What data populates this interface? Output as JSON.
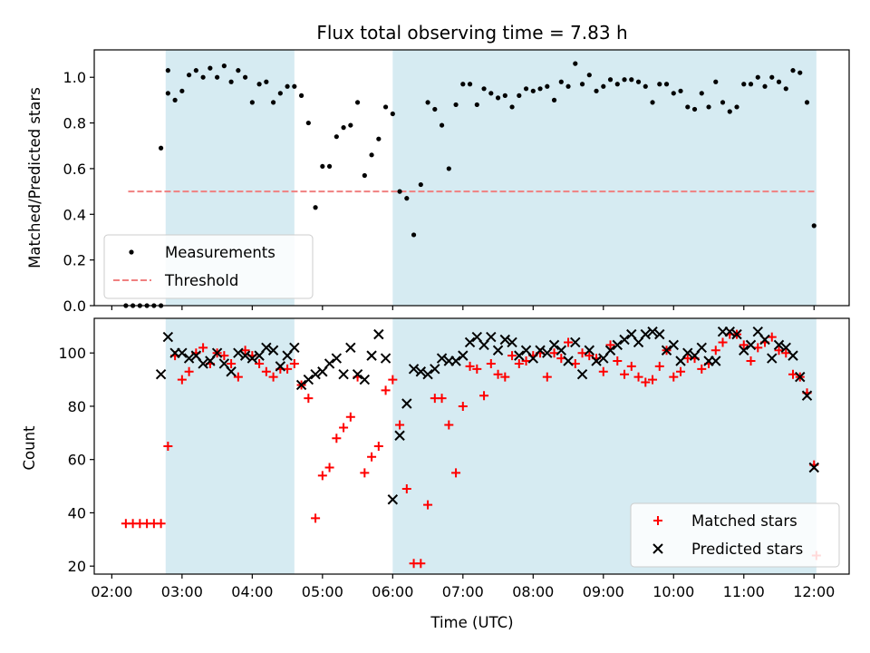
{
  "chart_data": [
    {
      "type": "scatter",
      "title": "Flux total observing time = 7.83 h",
      "ylabel": "Matched/Predicted stars",
      "ylim": [
        0,
        1.12
      ],
      "y_ticks": [
        "0.0",
        "0.2",
        "0.4",
        "0.6",
        "0.8",
        "1.0"
      ],
      "y_tick_values": [
        0,
        0.2,
        0.4,
        0.6,
        0.8,
        1.0
      ],
      "grid": false,
      "legend_position": "lower-left",
      "shaded_intervals": [
        [
          "02:46",
          "04:36"
        ],
        [
          "06:00",
          "12:02"
        ]
      ],
      "threshold": {
        "name": "Threshold",
        "value": 0.5,
        "x_range": [
          "02:14",
          "12:02"
        ],
        "color": "#f08080"
      },
      "series": [
        {
          "name": "Measurements",
          "marker": "dot",
          "color": "#000000",
          "x": [
            "02:12",
            "02:18",
            "02:24",
            "02:30",
            "02:36",
            "02:42",
            "02:48",
            "02:54",
            "03:00",
            "03:06",
            "03:12",
            "03:18",
            "03:24",
            "03:30",
            "03:36",
            "03:42",
            "03:48",
            "03:54",
            "04:00",
            "04:06",
            "04:12",
            "04:18",
            "04:24",
            "04:30",
            "04:36",
            "04:42",
            "04:48",
            "04:54",
            "05:00",
            "05:06",
            "05:12",
            "05:18",
            "05:24",
            "05:30",
            "05:36",
            "05:42",
            "05:48",
            "05:54",
            "06:00",
            "06:06",
            "06:12",
            "06:18",
            "06:24",
            "06:30",
            "06:36",
            "06:42",
            "06:48",
            "06:54",
            "07:00",
            "07:06",
            "07:12",
            "07:18",
            "07:24",
            "07:30",
            "07:36",
            "07:42",
            "07:48",
            "07:54",
            "08:00",
            "08:06",
            "08:12",
            "08:18",
            "08:24",
            "08:30",
            "08:36",
            "08:42",
            "08:48",
            "08:54",
            "09:00",
            "09:06",
            "09:12",
            "09:18",
            "09:24",
            "09:30",
            "09:36",
            "09:42",
            "09:48",
            "09:54",
            "10:00",
            "10:06",
            "10:12",
            "10:18",
            "10:24",
            "10:30",
            "10:36",
            "10:42",
            "10:48",
            "10:54",
            "11:00",
            "11:06",
            "11:12",
            "11:18",
            "11:24",
            "11:30",
            "11:36",
            "11:42",
            "11:48",
            "11:54",
            "12:00",
            "02:42",
            "02:48"
          ],
          "y": [
            0.0,
            0.0,
            0.0,
            0.0,
            0.0,
            0.0,
            0.93,
            0.9,
            0.94,
            1.01,
            1.03,
            1.0,
            1.04,
            1.0,
            1.05,
            0.98,
            1.03,
            1.0,
            0.89,
            0.97,
            0.98,
            0.89,
            0.93,
            0.96,
            0.96,
            0.92,
            0.8,
            0.43,
            0.61,
            0.61,
            0.74,
            0.78,
            0.79,
            0.89,
            0.57,
            0.66,
            0.73,
            0.87,
            0.84,
            0.5,
            0.47,
            0.31,
            0.53,
            0.89,
            0.86,
            0.79,
            0.6,
            0.88,
            0.97,
            0.97,
            0.88,
            0.95,
            0.93,
            0.91,
            0.92,
            0.87,
            0.92,
            0.95,
            0.94,
            0.95,
            0.96,
            0.9,
            0.98,
            0.96,
            1.06,
            0.97,
            1.01,
            0.94,
            0.96,
            0.99,
            0.97,
            0.99,
            0.99,
            0.98,
            0.96,
            0.89,
            0.97,
            0.97,
            0.93,
            0.94,
            0.87,
            0.86,
            0.93,
            0.87,
            0.98,
            0.89,
            0.85,
            0.87,
            0.97,
            0.97,
            1.0,
            0.96,
            1.0,
            0.98,
            0.95,
            1.03,
            1.02,
            0.89,
            0.35,
            0.69,
            1.03
          ]
        }
      ]
    },
    {
      "type": "scatter",
      "xlabel": "Time (UTC)",
      "ylabel": "Count",
      "ylim": [
        17,
        113
      ],
      "y_ticks": [
        "20",
        "40",
        "60",
        "80",
        "100"
      ],
      "y_tick_values": [
        20,
        40,
        60,
        80,
        100
      ],
      "x_ticks": [
        "02:00",
        "03:00",
        "04:00",
        "05:00",
        "06:00",
        "07:00",
        "08:00",
        "09:00",
        "10:00",
        "11:00",
        "12:00"
      ],
      "x_range": [
        "01:45",
        "12:30"
      ],
      "grid": false,
      "legend_position": "lower-right",
      "shaded_intervals": [
        [
          "02:46",
          "04:36"
        ],
        [
          "06:00",
          "12:02"
        ]
      ],
      "series": [
        {
          "name": "Matched stars",
          "marker": "plus",
          "color": "#ff0000",
          "x": [
            "02:12",
            "02:18",
            "02:24",
            "02:30",
            "02:36",
            "02:42",
            "02:48",
            "02:54",
            "03:00",
            "03:06",
            "03:12",
            "03:18",
            "03:24",
            "03:30",
            "03:36",
            "03:42",
            "03:48",
            "03:54",
            "04:00",
            "04:06",
            "04:12",
            "04:18",
            "04:24",
            "04:30",
            "04:36",
            "04:42",
            "04:48",
            "04:54",
            "05:00",
            "05:06",
            "05:12",
            "05:18",
            "05:24",
            "05:30",
            "05:36",
            "05:42",
            "05:48",
            "05:54",
            "06:00",
            "06:06",
            "06:12",
            "06:18",
            "06:24",
            "06:30",
            "06:36",
            "06:42",
            "06:48",
            "06:54",
            "07:00",
            "07:06",
            "07:12",
            "07:18",
            "07:24",
            "07:30",
            "07:36",
            "07:42",
            "07:48",
            "07:54",
            "08:00",
            "08:06",
            "08:12",
            "08:18",
            "08:24",
            "08:30",
            "08:36",
            "08:42",
            "08:48",
            "08:54",
            "09:00",
            "09:06",
            "09:12",
            "09:18",
            "09:24",
            "09:30",
            "09:36",
            "09:42",
            "09:48",
            "09:54",
            "10:00",
            "10:06",
            "10:12",
            "10:18",
            "10:24",
            "10:30",
            "10:36",
            "10:42",
            "10:48",
            "10:54",
            "11:00",
            "11:06",
            "11:12",
            "11:18",
            "11:24",
            "11:30",
            "11:36",
            "11:42",
            "11:48",
            "11:54",
            "12:00",
            "12:02"
          ],
          "y": [
            36,
            36,
            36,
            36,
            36,
            36,
            65,
            99,
            90,
            93,
            100,
            102,
            96,
            100,
            99,
            96,
            91,
            101,
            99,
            96,
            93,
            91,
            94,
            94,
            96,
            88,
            83,
            38,
            54,
            57,
            68,
            72,
            76,
            91,
            55,
            61,
            65,
            86,
            90,
            73,
            49,
            21,
            21,
            43,
            83,
            83,
            73,
            55,
            80,
            95,
            94,
            84,
            96,
            92,
            91,
            99,
            96,
            97,
            99,
            100,
            91,
            100,
            98,
            104,
            96,
            100,
            99,
            98,
            93,
            103,
            97,
            92,
            95,
            91,
            89,
            90,
            95,
            101,
            91,
            93,
            98,
            98,
            94,
            96,
            101,
            104,
            107,
            107,
            103,
            97,
            102,
            104,
            106,
            101,
            100,
            92,
            91,
            85,
            58,
            24
          ]
        },
        {
          "name": "Predicted stars",
          "marker": "x",
          "color": "#000000",
          "x": [
            "02:42",
            "02:48",
            "02:54",
            "03:00",
            "03:06",
            "03:12",
            "03:18",
            "03:24",
            "03:30",
            "03:36",
            "03:42",
            "03:48",
            "03:54",
            "04:00",
            "04:06",
            "04:12",
            "04:18",
            "04:24",
            "04:30",
            "04:36",
            "04:42",
            "04:48",
            "04:54",
            "05:00",
            "05:06",
            "05:12",
            "05:18",
            "05:24",
            "05:30",
            "05:36",
            "05:42",
            "05:48",
            "05:54",
            "06:00",
            "06:06",
            "06:12",
            "06:18",
            "06:24",
            "06:30",
            "06:36",
            "06:42",
            "06:48",
            "06:54",
            "07:00",
            "07:06",
            "07:12",
            "07:18",
            "07:24",
            "07:30",
            "07:36",
            "07:42",
            "07:48",
            "07:54",
            "08:00",
            "08:06",
            "08:12",
            "08:18",
            "08:24",
            "08:30",
            "08:36",
            "08:42",
            "08:48",
            "08:54",
            "09:00",
            "09:06",
            "09:12",
            "09:18",
            "09:24",
            "09:30",
            "09:36",
            "09:42",
            "09:48",
            "09:54",
            "10:00",
            "10:06",
            "10:12",
            "10:18",
            "10:24",
            "10:30",
            "10:36",
            "10:42",
            "10:48",
            "10:54",
            "11:00",
            "11:06",
            "11:12",
            "11:18",
            "11:24",
            "11:30",
            "11:36",
            "11:42",
            "11:48",
            "11:54",
            "12:00"
          ],
          "y": [
            92,
            106,
            100,
            100,
            98,
            99,
            96,
            97,
            100,
            96,
            93,
            100,
            99,
            98,
            99,
            102,
            101,
            95,
            99,
            102,
            88,
            90,
            92,
            93,
            96,
            98,
            92,
            102,
            92,
            90,
            99,
            107,
            98,
            45,
            69,
            81,
            94,
            93,
            92,
            94,
            98,
            97,
            97,
            99,
            104,
            106,
            103,
            106,
            101,
            105,
            104,
            99,
            101,
            98,
            101,
            100,
            103,
            101,
            97,
            104,
            92,
            101,
            97,
            98,
            101,
            103,
            105,
            107,
            104,
            107,
            108,
            107,
            101,
            103,
            97,
            100,
            99,
            102,
            97,
            97,
            108,
            108,
            107,
            101,
            103,
            108,
            105,
            98,
            103,
            102,
            99,
            91,
            84,
            57
          ]
        }
      ]
    }
  ]
}
